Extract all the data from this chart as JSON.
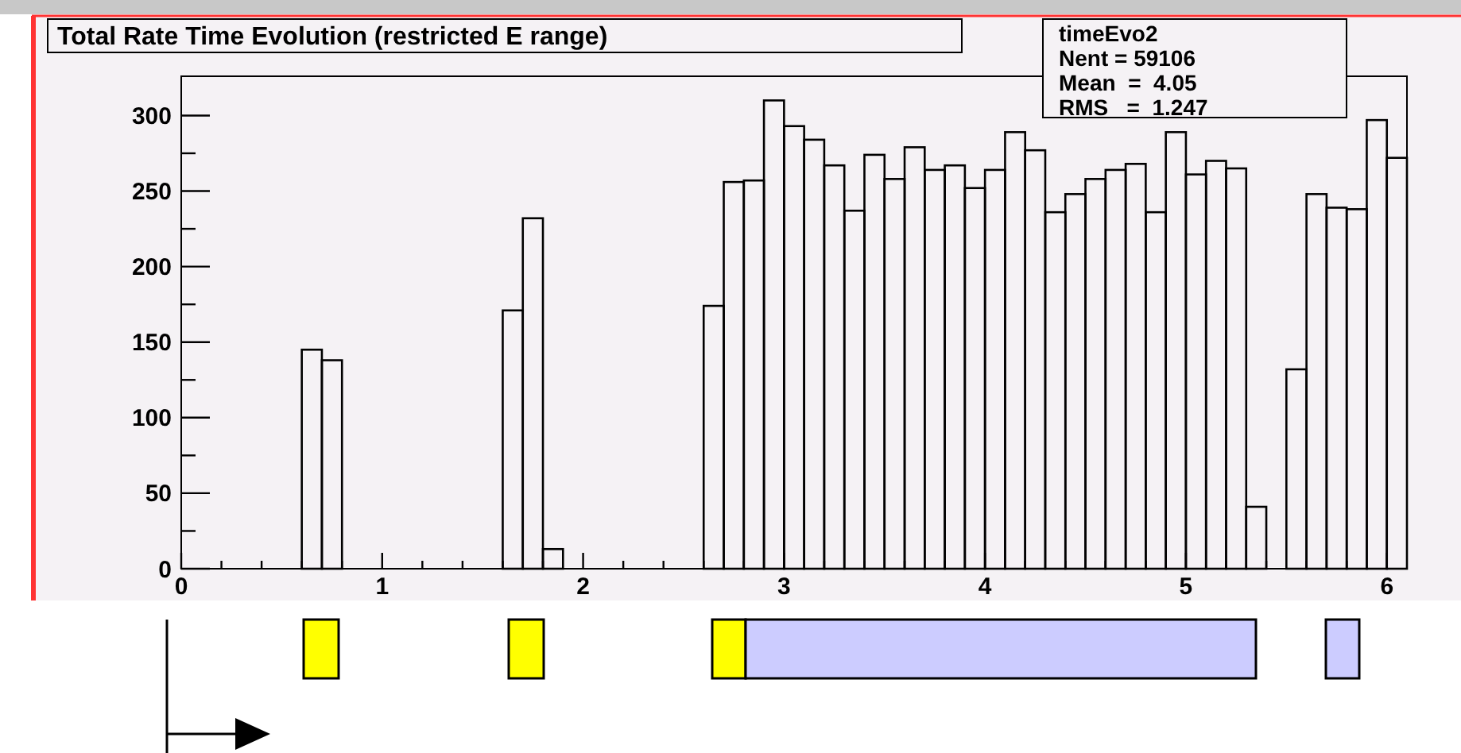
{
  "chart_data": {
    "type": "histogram",
    "title": "Total Rate Time Evolution (restricted E range)",
    "bins": [
      0,
      0.1,
      0.2,
      0.3,
      0.4,
      0.5,
      0.6,
      0.7,
      0.8,
      0.9,
      1,
      1.1,
      1.2,
      1.3,
      1.4,
      1.5,
      1.6,
      1.7,
      1.8,
      1.9,
      2,
      2.1,
      2.2,
      2.3,
      2.4,
      2.5,
      2.6,
      2.7,
      2.8,
      2.9,
      3,
      3.1,
      3.2,
      3.3,
      3.4,
      3.5,
      3.6,
      3.7,
      3.8,
      3.9,
      4,
      4.1,
      4.2,
      4.3,
      4.4,
      4.5,
      4.6,
      4.7,
      4.8,
      4.9,
      5,
      5.1,
      5.2,
      5.3,
      5.4,
      5.5,
      5.6,
      5.7,
      5.8,
      5.9,
      6,
      6.1
    ],
    "values": [
      0,
      0,
      0,
      0,
      0,
      0,
      145,
      138,
      0,
      0,
      0,
      0,
      0,
      0,
      0,
      0,
      171,
      232,
      13,
      0,
      0,
      0,
      0,
      0,
      0,
      0,
      174,
      256,
      257,
      310,
      293,
      284,
      267,
      237,
      274,
      258,
      279,
      264,
      267,
      252,
      264,
      289,
      277,
      236,
      248,
      258,
      264,
      268,
      236,
      289,
      261,
      270,
      265,
      41,
      0,
      132,
      248,
      239,
      238,
      297,
      272
    ],
    "color": "#000000",
    "xlim": [
      0,
      6.1
    ],
    "xticks": [
      0,
      {
        "value": 0.2,
        "label": null
      },
      {
        "value": 0.4,
        "label": null
      },
      {
        "value": 0.6,
        "label": null
      },
      {
        "value": 0.8,
        "label": null
      },
      1,
      {
        "value": 1.2,
        "label": null
      },
      {
        "value": 1.4,
        "label": null
      },
      {
        "value": 1.6,
        "label": null
      },
      {
        "value": 1.8,
        "label": null
      },
      2,
      {
        "value": 2.2,
        "label": null
      },
      {
        "value": 2.4,
        "label": null
      },
      {
        "value": 2.6,
        "label": null
      },
      {
        "value": 2.8,
        "label": null
      },
      3,
      {
        "value": 3.2,
        "label": null
      },
      {
        "value": 3.4,
        "label": null
      },
      {
        "value": 3.6,
        "label": null
      },
      {
        "value": 3.8,
        "label": null
      },
      4,
      {
        "value": 4.2,
        "label": null
      },
      {
        "value": 4.4,
        "label": null
      },
      {
        "value": 4.6,
        "label": null
      },
      {
        "value": 4.8,
        "label": null
      },
      5,
      {
        "value": 5.2,
        "label": null
      },
      {
        "value": 5.4,
        "label": null
      },
      {
        "value": 5.6,
        "label": null
      },
      {
        "value": 5.8,
        "label": null
      },
      6
    ],
    "ylim": [
      0,
      326
    ],
    "yticks": [
      0,
      {
        "value": 25,
        "label": null
      },
      50,
      {
        "value": 75,
        "label": null
      },
      100,
      {
        "value": 125,
        "label": null
      },
      150,
      {
        "value": 175,
        "label": null
      },
      200,
      {
        "value": 225,
        "label": null
      },
      250,
      {
        "value": 275,
        "label": null
      },
      300
    ],
    "grid": false,
    "annotations": [
      "timeEvo2",
      "Nent = 59106",
      "Mean  =  4.05",
      "RMS   =  1.247"
    ]
  }
}
